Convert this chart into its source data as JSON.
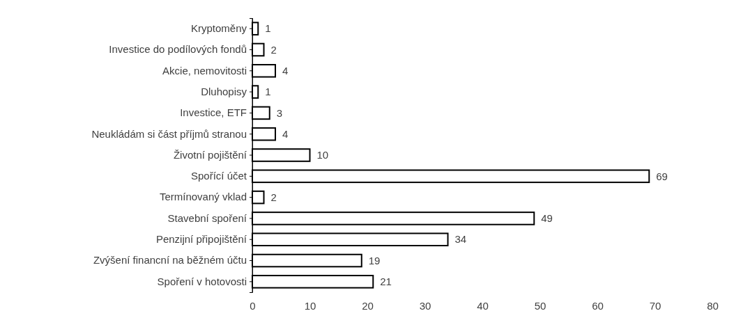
{
  "chart_data": {
    "type": "bar",
    "orientation": "horizontal",
    "categories": [
      "Kryptoměny",
      "Investice do podílových fondů",
      "Akcie, nemovitosti",
      "Dluhopisy",
      "Investice, ETF",
      "Neukládám si část příjmů stranou",
      "Životní pojištění",
      "Spořící účet",
      "Termínovaný vklad",
      "Stavební spoření",
      "Penzijní připojištění",
      "Zvýšení financní na běžném účtu",
      "Spoření v hotovosti"
    ],
    "values": [
      1,
      2,
      4,
      1,
      3,
      4,
      10,
      69,
      2,
      49,
      34,
      19,
      21
    ],
    "color": "#ffffff",
    "data_labels": true,
    "xlim": [
      0,
      80
    ],
    "xticks": [
      0,
      10,
      20,
      30,
      40,
      50,
      60,
      70,
      80
    ]
  }
}
